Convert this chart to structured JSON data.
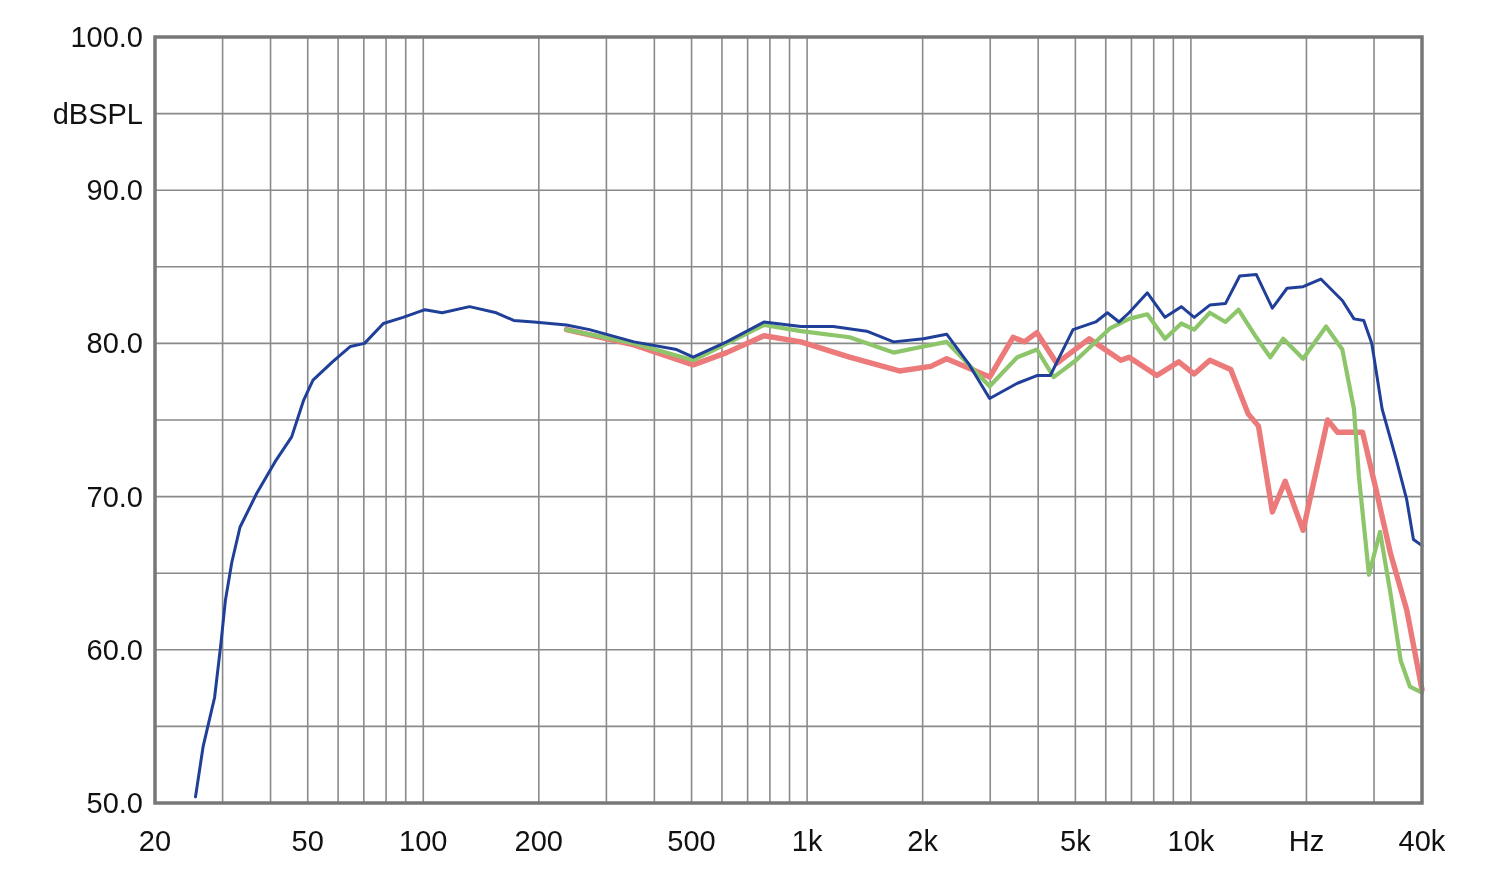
{
  "chart_data": {
    "type": "line",
    "log": "x",
    "grid": true,
    "line_style": "solid",
    "marker": "none",
    "xlim": [
      20,
      40000
    ],
    "ylim": [
      50,
      100
    ],
    "xticks": [
      20,
      {
        "value": 30,
        "label": null
      },
      {
        "value": 40,
        "label": null
      },
      50,
      {
        "value": 60,
        "label": null
      },
      {
        "value": 70,
        "label": null
      },
      {
        "value": 80,
        "label": null
      },
      {
        "value": 90,
        "label": null
      },
      100,
      200,
      {
        "value": 300,
        "label": null
      },
      {
        "value": 400,
        "label": null
      },
      500,
      {
        "value": 600,
        "label": null
      },
      {
        "value": 700,
        "label": null
      },
      {
        "value": 800,
        "label": null
      },
      {
        "value": 900,
        "label": null
      },
      {
        "value": 1000,
        "label": "1k"
      },
      {
        "value": 2000,
        "label": "2k"
      },
      {
        "value": 3000,
        "label": null
      },
      {
        "value": 4000,
        "label": null
      },
      {
        "value": 5000,
        "label": "5k"
      },
      {
        "value": 6000,
        "label": null
      },
      {
        "value": 7000,
        "label": null
      },
      {
        "value": 8000,
        "label": null
      },
      {
        "value": 9000,
        "label": null
      },
      {
        "value": 10000,
        "label": "10k"
      },
      {
        "value": 20000,
        "label": "Hz"
      },
      {
        "value": 30000,
        "label": null
      },
      {
        "value": 40000,
        "label": "40k"
      }
    ],
    "yticks": [
      {
        "value": 50,
        "label": "50.0"
      },
      {
        "value": 55,
        "label": null
      },
      {
        "value": 60,
        "label": "60.0"
      },
      {
        "value": 65,
        "label": null
      },
      {
        "value": 70,
        "label": "70.0"
      },
      {
        "value": 75,
        "label": null
      },
      {
        "value": 80,
        "label": "80.0"
      },
      {
        "value": 85,
        "label": null
      },
      {
        "value": 90,
        "label": "90.0"
      },
      {
        "value": 95,
        "label": "dBSPL"
      },
      {
        "value": 100,
        "label": "100.0"
      }
    ],
    "series": [
      {
        "color": "#ec7a7a",
        "x": [
          236,
          354,
          505,
          617,
          772,
          964,
          1290,
          1740,
          2100,
          2310,
          2990,
          3440,
          3680,
          3970,
          4470,
          5430,
          6570,
          6900,
          8150,
          9300,
          10200,
          11200,
          12700,
          14100,
          15000,
          16300,
          17600,
          19600,
          22700,
          24100,
          28000,
          30400,
          33100,
          36500,
          40000
        ],
        "values": [
          80.9,
          79.9,
          78.6,
          79.4,
          80.5,
          80.1,
          79.1,
          78.2,
          78.5,
          79.0,
          77.8,
          80.4,
          80.1,
          80.7,
          78.7,
          80.3,
          78.9,
          79.1,
          77.9,
          78.8,
          78.0,
          78.9,
          78.3,
          75.4,
          74.6,
          69.0,
          71.0,
          67.8,
          75.0,
          74.2,
          74.2,
          70.4,
          66.3,
          62.6,
          57.4
        ]
      },
      {
        "color": "#8cc56a",
        "x": [
          236,
          354,
          505,
          772,
          964,
          1290,
          1680,
          2010,
          2310,
          2990,
          3530,
          3970,
          4390,
          5020,
          6170,
          6900,
          7700,
          8560,
          9440,
          10200,
          11200,
          12300,
          13300,
          14800,
          16100,
          17400,
          19600,
          22500,
          24800,
          26600,
          27400,
          29100,
          31100,
          33100,
          35200,
          37200,
          40000
        ],
        "values": [
          80.9,
          80.0,
          78.9,
          81.2,
          80.8,
          80.4,
          79.4,
          79.8,
          80.1,
          77.2,
          79.1,
          79.6,
          77.8,
          78.9,
          81.0,
          81.6,
          81.9,
          80.3,
          81.3,
          80.9,
          82.0,
          81.4,
          82.2,
          80.4,
          79.1,
          80.3,
          79.0,
          81.1,
          79.6,
          75.7,
          71.3,
          64.9,
          67.7,
          63.7,
          59.3,
          57.6,
          57.2
        ]
      },
      {
        "color": "#1f3f99",
        "x": [
          25.5,
          26.7,
          28.6,
          29.7,
          30.5,
          31.7,
          33.3,
          36.8,
          41.4,
          45.4,
          48.8,
          51.6,
          58,
          64.6,
          70.3,
          78.7,
          88.6,
          101,
          112,
          132,
          155,
          172,
          194,
          236,
          271,
          354,
          457,
          505,
          617,
          772,
          964,
          1170,
          1430,
          1680,
          2010,
          2310,
          2630,
          2990,
          3530,
          3970,
          4300,
          4930,
          5650,
          6060,
          6500,
          6900,
          7700,
          8560,
          9440,
          10200,
          11200,
          12300,
          13400,
          14800,
          16300,
          17800,
          19600,
          21800,
          24800,
          26600,
          28200,
          29600,
          31500,
          34300,
          36500,
          38000,
          40000
        ],
        "values": [
          50.4,
          53.7,
          56.9,
          60.4,
          63.2,
          65.7,
          68.0,
          70.2,
          72.4,
          73.9,
          76.3,
          77.6,
          78.8,
          79.8,
          80.0,
          81.3,
          81.7,
          82.2,
          82.0,
          82.4,
          82.0,
          81.5,
          81.4,
          81.2,
          80.9,
          80.1,
          79.6,
          79.1,
          80.1,
          81.4,
          81.1,
          81.1,
          80.8,
          80.1,
          80.3,
          80.6,
          78.7,
          76.4,
          77.4,
          77.9,
          77.9,
          80.9,
          81.4,
          82.0,
          81.4,
          82.0,
          83.3,
          81.7,
          82.4,
          81.7,
          82.5,
          82.6,
          84.4,
          84.5,
          82.3,
          83.6,
          83.7,
          84.2,
          82.8,
          81.6,
          81.5,
          80.0,
          75.7,
          72.4,
          69.8,
          67.2,
          66.8
        ]
      }
    ]
  }
}
